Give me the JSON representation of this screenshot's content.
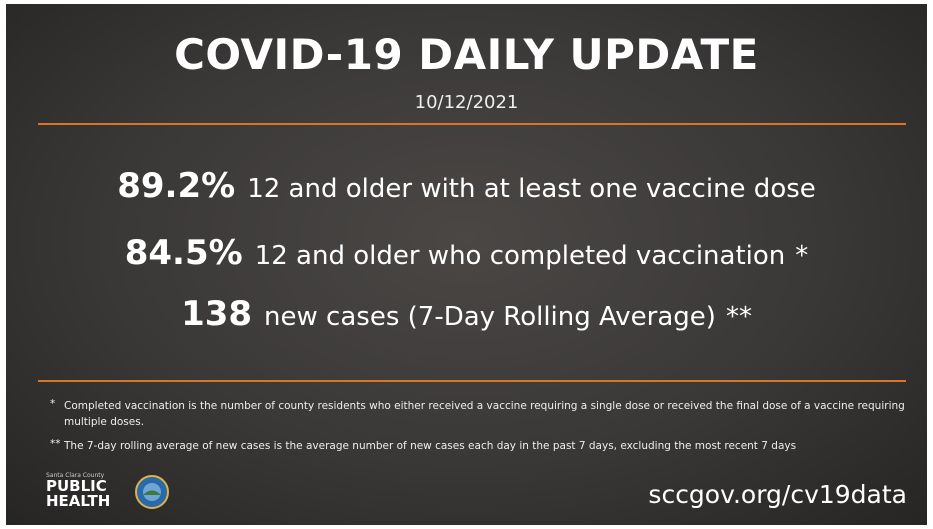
{
  "header": {
    "title": "COVID-19 DAILY UPDATE",
    "date": "10/12/2021"
  },
  "stats": [
    {
      "value": "89.2%",
      "label": "12 and older with at least one vaccine dose",
      "note": ""
    },
    {
      "value": "84.5%",
      "label": "12 and older who completed vaccination",
      "note": "*"
    },
    {
      "value": "138",
      "label": "new cases (7-Day Rolling Average)",
      "note": "**"
    }
  ],
  "footnotes": [
    {
      "marker": "*",
      "text": "Completed vaccination is the number of county residents who either received a vaccine requiring a single dose or received the final dose of a vaccine requiring multiple doses."
    },
    {
      "marker": "**",
      "text": "The 7-day rolling average of new cases is the average number of new cases each day in the past 7 days, excluding the most recent 7 days"
    }
  ],
  "logo": {
    "county": "Santa Clara County",
    "line1": "PUBLIC",
    "line2": "HEALTH"
  },
  "url": "sccgov.org/cv19data"
}
